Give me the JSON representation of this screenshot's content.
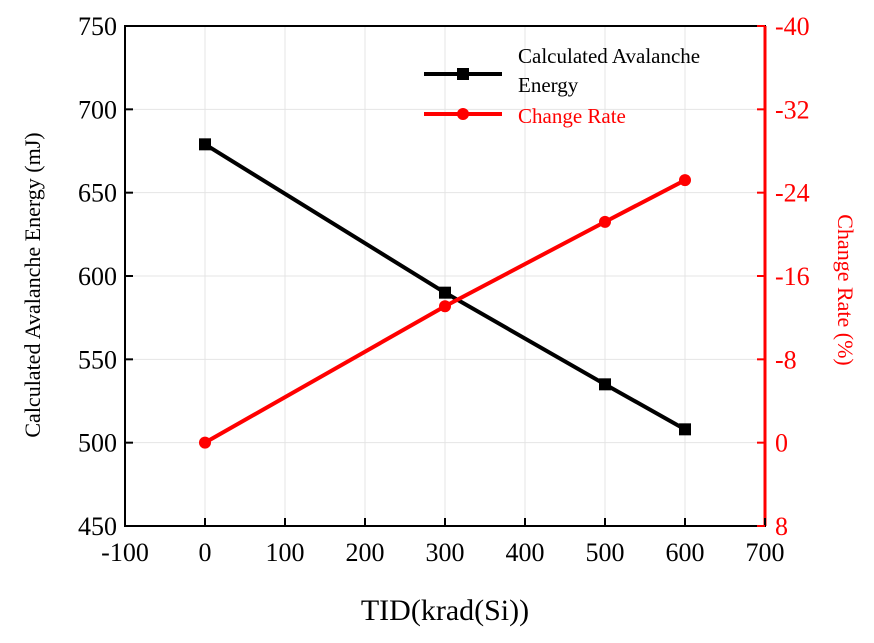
{
  "chart_data": {
    "type": "line",
    "x": [
      0,
      300,
      500,
      600
    ],
    "xlabel": "TID(krad(Si))",
    "xlim": [
      -100,
      700
    ],
    "xticks": [
      "-100",
      "0",
      "100",
      "200",
      "300",
      "400",
      "500",
      "600",
      "700"
    ],
    "ylabel_left": "Calculated Avalanche Energy (mJ)",
    "ylim_left": [
      450,
      750
    ],
    "yticks_left": [
      "450",
      "500",
      "550",
      "600",
      "650",
      "700",
      "750"
    ],
    "ylabel_right": "Change Rate (%)",
    "ylim_right": [
      8,
      -40
    ],
    "yticks_right": [
      "8",
      "0",
      "-8",
      "-16",
      "-24",
      "-32",
      "-40"
    ],
    "grid": true,
    "legend_position": "top-right",
    "series": [
      {
        "name": "Calculated Avalanche Energy",
        "legend_line1": "Calculated Avalanche",
        "legend_line2": "Energy",
        "axis": "left",
        "marker": "square",
        "color": "#000000",
        "values": [
          679,
          590,
          535,
          508
        ]
      },
      {
        "name": "Change Rate",
        "axis": "right",
        "marker": "circle",
        "color": "#ff0000",
        "values": [
          0,
          -13.1,
          -21.2,
          -25.2
        ]
      }
    ]
  }
}
